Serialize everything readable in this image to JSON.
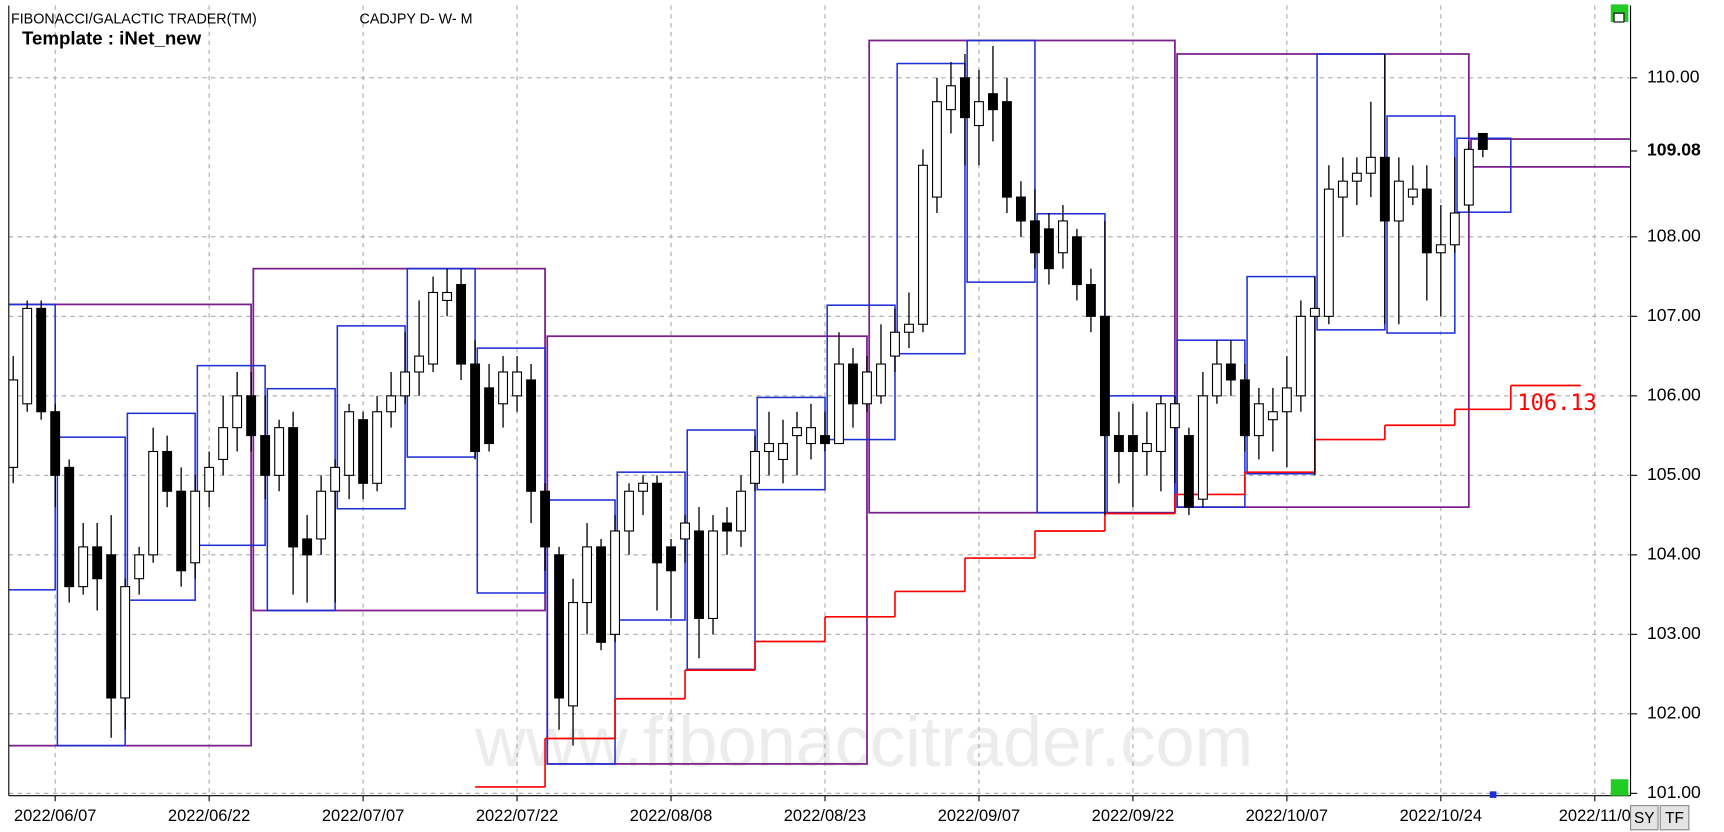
{
  "header": {
    "app": "FIBONACCI/GALACTIC TRADER(TM)",
    "symbol": "CADJPY D- W- M",
    "template": "Template : iNet_new"
  },
  "watermark": "www.fibonaccitrader.com",
  "buttons": [
    "SY",
    "TF"
  ],
  "chart_data": {
    "type": "candlestick",
    "categories": [
      null,
      null,
      null,
      "2022/06/07",
      null,
      null,
      null,
      null,
      null,
      null,
      null,
      null,
      null,
      null,
      "2022/06/22",
      null,
      null,
      null,
      null,
      null,
      null,
      null,
      null,
      null,
      null,
      "2022/07/07",
      null,
      null,
      null,
      null,
      null,
      null,
      null,
      null,
      null,
      null,
      "2022/07/22",
      null,
      null,
      null,
      null,
      null,
      null,
      null,
      null,
      null,
      null,
      "2022/08/08",
      null,
      null,
      null,
      null,
      null,
      null,
      null,
      null,
      null,
      null,
      "2022/08/23",
      null,
      null,
      null,
      null,
      null,
      null,
      null,
      null,
      null,
      null,
      "2022/09/07",
      null,
      null,
      null,
      null,
      null,
      null,
      null,
      null,
      null,
      null,
      "2022/09/22",
      null,
      null,
      null,
      null,
      null,
      null,
      null,
      null,
      null,
      null,
      "2022/10/07",
      null,
      null,
      null,
      null,
      null,
      null,
      null,
      null,
      null,
      null,
      "2022/10/24",
      null,
      null,
      null,
      null,
      null,
      null,
      null,
      null,
      null,
      null,
      "2022/11/0",
      null,
      null
    ],
    "open": [
      105.1,
      105.9,
      107.1,
      105.8,
      105.1,
      103.6,
      104.1,
      104.0,
      102.2,
      103.7,
      104.0,
      105.3,
      104.8,
      103.9,
      104.8,
      105.2,
      105.6,
      106.0,
      105.5,
      105.0,
      105.6,
      104.2,
      104.2,
      104.8,
      105.0,
      105.7,
      104.9,
      105.8,
      106.0,
      106.3,
      106.4,
      107.2,
      107.4,
      106.4,
      106.1,
      105.9,
      106.0,
      106.2,
      104.8,
      104.0,
      102.1,
      103.4,
      104.1,
      103.0,
      104.3,
      104.8,
      104.9,
      104.1,
      104.2,
      104.3,
      103.2,
      104.4,
      104.3,
      104.9,
      105.3,
      105.2,
      105.5,
      105.4,
      105.5,
      105.4,
      106.4,
      105.9,
      106.0,
      106.5,
      106.8,
      106.9,
      108.5,
      109.6,
      110.0,
      109.4,
      109.8,
      109.7,
      108.5,
      108.2,
      108.1,
      107.8,
      108.0,
      107.4,
      107.0,
      105.5,
      105.5,
      105.3,
      105.3,
      105.6,
      105.5,
      104.7,
      106.0,
      106.4,
      106.2,
      105.5,
      105.7,
      105.8,
      106.0,
      107.0,
      107.0,
      108.5,
      108.7,
      108.8,
      109.0,
      108.2,
      108.5,
      108.6,
      107.8,
      107.9,
      108.4,
      109.3,
      null,
      null,
      null,
      null,
      null,
      null,
      null,
      null,
      null,
      null
    ],
    "high": [
      106.5,
      107.2,
      107.2,
      105.9,
      105.2,
      104.4,
      104.4,
      104.5,
      103.7,
      104.1,
      105.6,
      105.5,
      105.1,
      105.0,
      105.3,
      106.0,
      106.3,
      106.3,
      106.0,
      105.7,
      105.8,
      104.5,
      105.0,
      105.2,
      105.9,
      105.8,
      106.0,
      106.3,
      106.8,
      107.2,
      107.5,
      107.6,
      107.6,
      106.7,
      106.4,
      106.5,
      106.5,
      106.4,
      104.9,
      104.1,
      103.7,
      104.4,
      104.2,
      104.5,
      104.9,
      105.0,
      105.0,
      104.2,
      104.5,
      104.6,
      104.5,
      104.6,
      105.0,
      105.5,
      105.8,
      105.7,
      105.8,
      105.9,
      105.8,
      106.8,
      106.6,
      106.5,
      106.9,
      107.1,
      107.3,
      109.1,
      110.0,
      110.2,
      110.3,
      110.1,
      110.4,
      110.0,
      108.7,
      108.6,
      108.3,
      108.4,
      108.1,
      107.6,
      108.2,
      105.8,
      105.9,
      105.8,
      106.0,
      106.0,
      105.6,
      106.3,
      106.7,
      106.7,
      106.4,
      106.1,
      106.1,
      106.5,
      107.2,
      107.5,
      108.9,
      109.0,
      109.0,
      109.7,
      110.3,
      109.0,
      108.9,
      108.9,
      108.4,
      109.0,
      109.2,
      109.3,
      null,
      null,
      null,
      null,
      null,
      null,
      null,
      null,
      null,
      null
    ],
    "low": [
      104.9,
      105.8,
      105.7,
      104.6,
      103.4,
      103.5,
      103.3,
      101.7,
      101.8,
      103.5,
      103.9,
      104.6,
      103.6,
      103.7,
      104.6,
      105.0,
      105.3,
      105.3,
      104.7,
      104.8,
      103.5,
      103.4,
      104.0,
      103.4,
      104.7,
      104.7,
      104.8,
      105.6,
      105.9,
      106.0,
      106.3,
      107.0,
      106.2,
      105.2,
      105.3,
      105.6,
      105.8,
      104.4,
      103.8,
      101.8,
      101.6,
      103.0,
      102.8,
      102.9,
      104.0,
      104.5,
      103.3,
      103.2,
      103.9,
      102.7,
      103.0,
      104.0,
      104.1,
      104.8,
      105.0,
      104.9,
      105.0,
      105.2,
      105.3,
      105.4,
      105.6,
      105.8,
      105.9,
      106.3,
      106.6,
      106.8,
      108.3,
      109.3,
      108.9,
      108.9,
      109.2,
      108.3,
      108.0,
      107.6,
      107.4,
      107.6,
      107.2,
      106.8,
      104.5,
      104.9,
      104.6,
      105.0,
      104.8,
      104.9,
      104.5,
      104.6,
      105.9,
      106.0,
      105.3,
      105.2,
      105.3,
      105.1,
      105.8,
      105.0,
      106.9,
      108.0,
      108.4,
      108.5,
      106.9,
      106.9,
      108.4,
      107.2,
      107.0,
      107.8,
      108.3,
      109.0,
      null,
      null,
      null,
      null,
      null,
      null,
      null,
      null,
      null,
      null
    ],
    "close": [
      106.2,
      107.1,
      105.8,
      105.0,
      103.6,
      104.1,
      103.7,
      102.2,
      103.6,
      104.0,
      105.3,
      104.8,
      103.8,
      104.8,
      105.1,
      105.6,
      106.0,
      105.5,
      105.0,
      105.6,
      104.1,
      104.0,
      104.8,
      105.1,
      105.8,
      104.9,
      105.8,
      106.0,
      106.3,
      106.5,
      107.3,
      107.3,
      106.4,
      105.3,
      105.4,
      106.3,
      106.3,
      104.8,
      104.1,
      102.2,
      103.4,
      104.1,
      102.9,
      104.3,
      104.8,
      104.9,
      103.9,
      103.8,
      104.4,
      103.2,
      104.3,
      104.3,
      104.8,
      105.3,
      105.4,
      105.4,
      105.6,
      105.6,
      105.4,
      106.4,
      105.9,
      106.3,
      106.4,
      106.8,
      106.9,
      108.9,
      109.7,
      109.9,
      109.5,
      109.7,
      109.6,
      108.5,
      108.2,
      107.8,
      107.6,
      108.2,
      107.4,
      107.0,
      105.5,
      105.3,
      105.3,
      105.4,
      105.9,
      105.9,
      104.6,
      106.0,
      106.4,
      106.2,
      105.5,
      105.9,
      105.8,
      106.1,
      107.0,
      107.1,
      108.6,
      108.7,
      108.8,
      109.0,
      108.2,
      108.7,
      108.6,
      107.8,
      107.9,
      108.3,
      109.1,
      109.1,
      null,
      null,
      null,
      null,
      null,
      null,
      null,
      null,
      null,
      null
    ],
    "up_color": "#ffffff",
    "down_color": "#000000",
    "ylim": [
      100.97,
      110.91
    ],
    "yticks": [
      {
        "value": 101,
        "label": "101.00"
      },
      {
        "value": 102,
        "label": "102.00"
      },
      {
        "value": 103,
        "label": "103.00"
      },
      {
        "value": 104,
        "label": "104.00"
      },
      {
        "value": 105,
        "label": "105.00"
      },
      {
        "value": 106,
        "label": "106.00"
      },
      {
        "value": 107,
        "label": "107.00"
      },
      {
        "value": 108,
        "label": "108.00"
      },
      {
        "value": 110,
        "label": "110.00"
      }
    ],
    "grid": true,
    "last_price": {
      "value": 109.08,
      "label": "109.08"
    },
    "monthly_boxes": {
      "color": "#7b1f8e",
      "boxes": [
        {
          "from": -1,
          "to": 17,
          "high": 107.15,
          "low": 101.6
        },
        {
          "from": 17,
          "to": 38,
          "high": 107.6,
          "low": 103.3
        },
        {
          "from": 38,
          "to": 61,
          "high": 106.75,
          "low": 101.37
        },
        {
          "from": 61,
          "to": 83,
          "high": 110.47,
          "low": 104.53
        },
        {
          "from": 83,
          "to": 104,
          "high": 110.3,
          "low": 104.6
        },
        {
          "from": 104,
          "to": 116,
          "high": 109.23,
          "low": 108.88
        }
      ]
    },
    "weekly_boxes": {
      "color": "#1f2fd6",
      "boxes": [
        {
          "from": -1,
          "to": 3,
          "high": 107.15,
          "low": 103.56
        },
        {
          "from": 3,
          "to": 8,
          "high": 105.48,
          "low": 101.6
        },
        {
          "from": 8,
          "to": 13,
          "high": 105.78,
          "low": 103.43
        },
        {
          "from": 13,
          "to": 18,
          "high": 106.38,
          "low": 104.12
        },
        {
          "from": 18,
          "to": 23,
          "high": 106.09,
          "low": 103.3
        },
        {
          "from": 23,
          "to": 28,
          "high": 106.88,
          "low": 104.58
        },
        {
          "from": 28,
          "to": 33,
          "high": 107.6,
          "low": 105.23
        },
        {
          "from": 33,
          "to": 38,
          "high": 106.6,
          "low": 103.52
        },
        {
          "from": 38,
          "to": 43,
          "high": 104.69,
          "low": 101.37
        },
        {
          "from": 43,
          "to": 48,
          "high": 105.04,
          "low": 103.18
        },
        {
          "from": 48,
          "to": 53,
          "high": 105.57,
          "low": 102.56
        },
        {
          "from": 53,
          "to": 58,
          "high": 105.98,
          "low": 104.82
        },
        {
          "from": 58,
          "to": 63,
          "high": 107.14,
          "low": 105.45
        },
        {
          "from": 63,
          "to": 68,
          "high": 110.18,
          "low": 106.53
        },
        {
          "from": 68,
          "to": 73,
          "high": 110.47,
          "low": 107.43
        },
        {
          "from": 73,
          "to": 78,
          "high": 108.29,
          "low": 104.53
        },
        {
          "from": 78,
          "to": 83,
          "high": 106.0,
          "low": 104.53
        },
        {
          "from": 83,
          "to": 88,
          "high": 106.7,
          "low": 104.6
        },
        {
          "from": 88,
          "to": 93,
          "high": 107.5,
          "low": 105.02
        },
        {
          "from": 93,
          "to": 98,
          "high": 110.3,
          "low": 106.83
        },
        {
          "from": 98,
          "to": 103,
          "high": 109.52,
          "low": 106.79
        },
        {
          "from": 103,
          "to": 107,
          "high": 109.24,
          "low": 108.31
        }
      ]
    },
    "stop_line": {
      "color": "#ff0000",
      "steps": [
        {
          "from": 33,
          "to": 38,
          "value": 101.08
        },
        {
          "from": 38,
          "to": 43,
          "value": 101.69
        },
        {
          "from": 43,
          "to": 48,
          "value": 102.19
        },
        {
          "from": 48,
          "to": 53,
          "value": 102.55
        },
        {
          "from": 53,
          "to": 58,
          "value": 102.91
        },
        {
          "from": 58,
          "to": 63,
          "value": 103.22
        },
        {
          "from": 63,
          "to": 68,
          "value": 103.54
        },
        {
          "from": 68,
          "to": 73,
          "value": 103.96
        },
        {
          "from": 73,
          "to": 78,
          "value": 104.3
        },
        {
          "from": 78,
          "to": 83,
          "value": 104.52
        },
        {
          "from": 83,
          "to": 88,
          "value": 104.76
        },
        {
          "from": 88,
          "to": 93,
          "value": 105.04
        },
        {
          "from": 93,
          "to": 98,
          "value": 105.45
        },
        {
          "from": 98,
          "to": 103,
          "value": 105.63
        },
        {
          "from": 103,
          "to": 107,
          "value": 105.83
        },
        {
          "from": 107,
          "to": 112,
          "value": 106.13,
          "label": "106.13"
        }
      ]
    }
  }
}
